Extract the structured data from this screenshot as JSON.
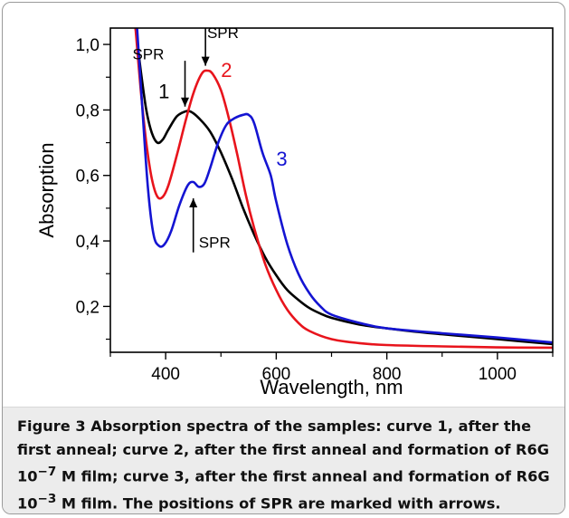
{
  "chart_data": {
    "type": "line",
    "xlabel": "Wavelength, nm",
    "ylabel": "Absorption",
    "xlim": [
      300,
      1100
    ],
    "ylim": [
      0.06,
      1.05
    ],
    "xticks": [
      400,
      600,
      800,
      1000
    ],
    "xtick_labels": [
      "400",
      "600",
      "800",
      "1000"
    ],
    "yticks": [
      0.2,
      0.4,
      0.6,
      0.8,
      1.0
    ],
    "ytick_labels": [
      "0,2",
      "0,4",
      "0,6",
      "0,8",
      "1,0"
    ],
    "grid": false,
    "series": [
      {
        "name": "1",
        "color": "#000000",
        "x": [
          345,
          355,
          365,
          375,
          385,
          395,
          405,
          420,
          435,
          445,
          460,
          480,
          500,
          520,
          540,
          560,
          580,
          600,
          620,
          640,
          660,
          680,
          700,
          750,
          800,
          850,
          900,
          1000,
          1100
        ],
        "y": [
          1.06,
          0.92,
          0.8,
          0.73,
          0.7,
          0.71,
          0.74,
          0.78,
          0.795,
          0.795,
          0.775,
          0.735,
          0.67,
          0.59,
          0.5,
          0.42,
          0.35,
          0.295,
          0.25,
          0.22,
          0.195,
          0.178,
          0.165,
          0.145,
          0.133,
          0.123,
          0.115,
          0.1,
          0.085
        ]
      },
      {
        "name": "2",
        "color": "#e8141c",
        "x": [
          345,
          355,
          365,
          375,
          385,
          395,
          405,
          420,
          435,
          450,
          465,
          475,
          485,
          500,
          515,
          530,
          545,
          560,
          580,
          600,
          620,
          640,
          660,
          700,
          750,
          800,
          900,
          1000,
          1100
        ],
        "y": [
          1.06,
          0.86,
          0.7,
          0.59,
          0.535,
          0.535,
          0.57,
          0.66,
          0.76,
          0.85,
          0.91,
          0.92,
          0.91,
          0.86,
          0.77,
          0.66,
          0.54,
          0.44,
          0.33,
          0.25,
          0.19,
          0.15,
          0.125,
          0.1,
          0.088,
          0.082,
          0.078,
          0.075,
          0.074
        ]
      },
      {
        "name": "3",
        "color": "#1414d2",
        "x": [
          348,
          358,
          368,
          378,
          388,
          398,
          410,
          425,
          440,
          450,
          460,
          470,
          480,
          495,
          510,
          525,
          540,
          550,
          560,
          575,
          590,
          600,
          620,
          640,
          660,
          680,
          700,
          750,
          800,
          900,
          1000,
          1100
        ],
        "y": [
          1.06,
          0.8,
          0.56,
          0.42,
          0.385,
          0.39,
          0.43,
          0.51,
          0.57,
          0.58,
          0.565,
          0.575,
          0.62,
          0.7,
          0.755,
          0.775,
          0.785,
          0.785,
          0.76,
          0.67,
          0.6,
          0.52,
          0.39,
          0.3,
          0.24,
          0.2,
          0.175,
          0.15,
          0.133,
          0.118,
          0.105,
          0.09
        ]
      }
    ],
    "curve_labels": [
      {
        "text": "1",
        "color": "#000000"
      },
      {
        "text": "2",
        "color": "#e8141c"
      },
      {
        "text": "3",
        "color": "#1414d2"
      }
    ],
    "annotations": [
      "SPR",
      "SPR",
      "SPR"
    ]
  },
  "caption": {
    "lead": "Figure 3",
    "text": " Absorption spectra of the samples: curve 1, after the first anneal; curve 2, after the first anneal and formation of R6G 10",
    "sup1": "−7",
    "text2": " M film; curve 3, after the first anneal and formation of R6G 10",
    "sup2": "−3",
    "text3": " M film. The positions of SPR are marked with arrows."
  }
}
